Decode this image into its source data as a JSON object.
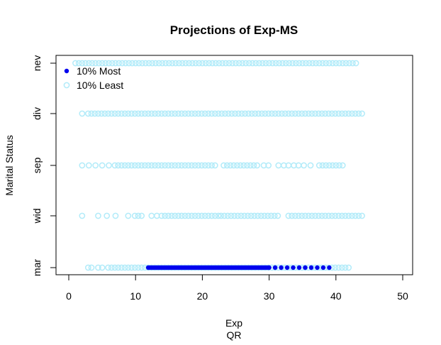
{
  "chart_data": {
    "type": "scatter",
    "title": "Projections of Exp-MS",
    "xlabel": "Exp",
    "xlabel2": "QR",
    "ylabel": "Marital Status",
    "xlim": [
      -2,
      51
    ],
    "x_ticks": [
      0,
      10,
      20,
      30,
      40,
      50
    ],
    "categories": [
      "mar",
      "wid",
      "sep",
      "div",
      "nev"
    ],
    "legend_position": "top-left",
    "series": [
      {
        "name": "10% Least",
        "color": "#B2EBF9",
        "marker": "open-circle",
        "points": {
          "nev": {
            "ranges": [
              [
                1,
                43.1,
                0.5
              ]
            ],
            "points": []
          },
          "div": {
            "ranges": [
              [
                2.9,
                44.1,
                0.5
              ]
            ],
            "points": [
              2
            ]
          },
          "sep": {
            "ranges": [
              [
                6.9,
                22.3,
                0.5
              ],
              [
                23.2,
                28.5,
                0.5
              ],
              [
                37.5,
                41.4,
                0.5
              ]
            ],
            "points": [
              2,
              3,
              4,
              5,
              6,
              29.2,
              29.9,
              31.4,
              32.2,
              32.9,
              33.7,
              34.4,
              35.2,
              36.2
            ]
          },
          "wid": {
            "ranges": [
              [
                13.9,
                22.5,
                0.5
              ],
              [
                22.8,
                31.3,
                0.5
              ],
              [
                32.9,
                44.2,
                0.5
              ]
            ],
            "points": [
              2,
              4.4,
              5.7,
              7,
              8.9,
              9.9,
              10.4,
              10.9,
              12.4,
              13.2
            ]
          },
          "mar": {
            "ranges": [
              [
                5.9,
                42,
                0.5
              ]
            ],
            "points": [
              2.9,
              3.4,
              4.4,
              5
            ]
          }
        }
      },
      {
        "name": "10% Most",
        "color": "#0000EE",
        "marker": "filled-circle",
        "points": {
          "mar": {
            "ranges": [
              [
                11.9,
                30,
                0.25
              ],
              [
                30,
                39,
                0.9
              ]
            ],
            "points": []
          }
        }
      }
    ]
  }
}
